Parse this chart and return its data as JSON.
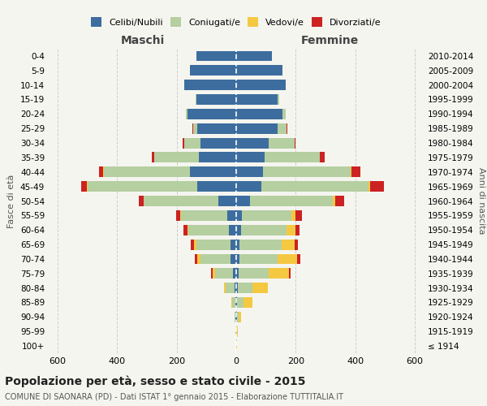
{
  "age_groups": [
    "100+",
    "95-99",
    "90-94",
    "85-89",
    "80-84",
    "75-79",
    "70-74",
    "65-69",
    "60-64",
    "55-59",
    "50-54",
    "45-49",
    "40-44",
    "35-39",
    "30-34",
    "25-29",
    "20-24",
    "15-19",
    "10-14",
    "5-9",
    "0-4"
  ],
  "birth_years": [
    "≤ 1914",
    "1915-1919",
    "1920-1924",
    "1925-1929",
    "1930-1934",
    "1935-1939",
    "1940-1944",
    "1945-1949",
    "1950-1954",
    "1955-1959",
    "1960-1964",
    "1965-1969",
    "1970-1974",
    "1975-1979",
    "1980-1984",
    "1985-1989",
    "1990-1994",
    "1995-1999",
    "2000-2004",
    "2005-2009",
    "2010-2014"
  ],
  "males": {
    "celibi": [
      1,
      1,
      2,
      3,
      5,
      10,
      20,
      20,
      25,
      30,
      60,
      130,
      155,
      125,
      120,
      130,
      165,
      135,
      175,
      155,
      135
    ],
    "coniugati": [
      0,
      1,
      3,
      10,
      30,
      60,
      100,
      115,
      135,
      155,
      250,
      370,
      290,
      150,
      55,
      15,
      5,
      2,
      0,
      0,
      0
    ],
    "vedovi": [
      0,
      0,
      1,
      4,
      5,
      10,
      10,
      8,
      5,
      3,
      2,
      2,
      2,
      0,
      0,
      0,
      0,
      0,
      0,
      0,
      0
    ],
    "divorziati": [
      0,
      0,
      0,
      0,
      2,
      5,
      8,
      10,
      12,
      15,
      15,
      20,
      15,
      10,
      5,
      1,
      0,
      0,
      0,
      0,
      0
    ]
  },
  "females": {
    "nubili": [
      1,
      1,
      3,
      4,
      5,
      8,
      10,
      12,
      15,
      20,
      45,
      85,
      90,
      95,
      110,
      140,
      155,
      140,
      165,
      155,
      120
    ],
    "coniugate": [
      0,
      2,
      5,
      20,
      50,
      100,
      130,
      140,
      155,
      165,
      280,
      360,
      295,
      185,
      85,
      30,
      10,
      5,
      2,
      0,
      0
    ],
    "vedove": [
      1,
      2,
      8,
      30,
      50,
      70,
      65,
      45,
      30,
      15,
      8,
      5,
      3,
      1,
      0,
      0,
      0,
      0,
      0,
      0,
      0
    ],
    "divorziate": [
      0,
      0,
      0,
      0,
      2,
      5,
      10,
      10,
      12,
      20,
      30,
      45,
      30,
      15,
      5,
      1,
      0,
      0,
      0,
      0,
      0
    ]
  },
  "colors": {
    "celibi": "#3d6d9e",
    "coniugati": "#b5cfa0",
    "vedovi": "#f5c842",
    "divorziati": "#cc2222"
  },
  "title": "Popolazione per età, sesso e stato civile - 2015",
  "subtitle": "COMUNE DI SAONARA (PD) - Dati ISTAT 1° gennaio 2015 - Elaborazione TUTTITALIA.IT",
  "label_maschi": "Maschi",
  "label_femmine": "Femmine",
  "ylabel_left": "Fasce di età",
  "ylabel_right": "Anni di nascita",
  "xlim": 630,
  "xticks": [
    -600,
    -400,
    -200,
    0,
    200,
    400,
    600
  ],
  "legend_labels": [
    "Celibi/Nubili",
    "Coniugati/e",
    "Vedovi/e",
    "Divorziati/e"
  ],
  "background_color": "#f5f5f0"
}
